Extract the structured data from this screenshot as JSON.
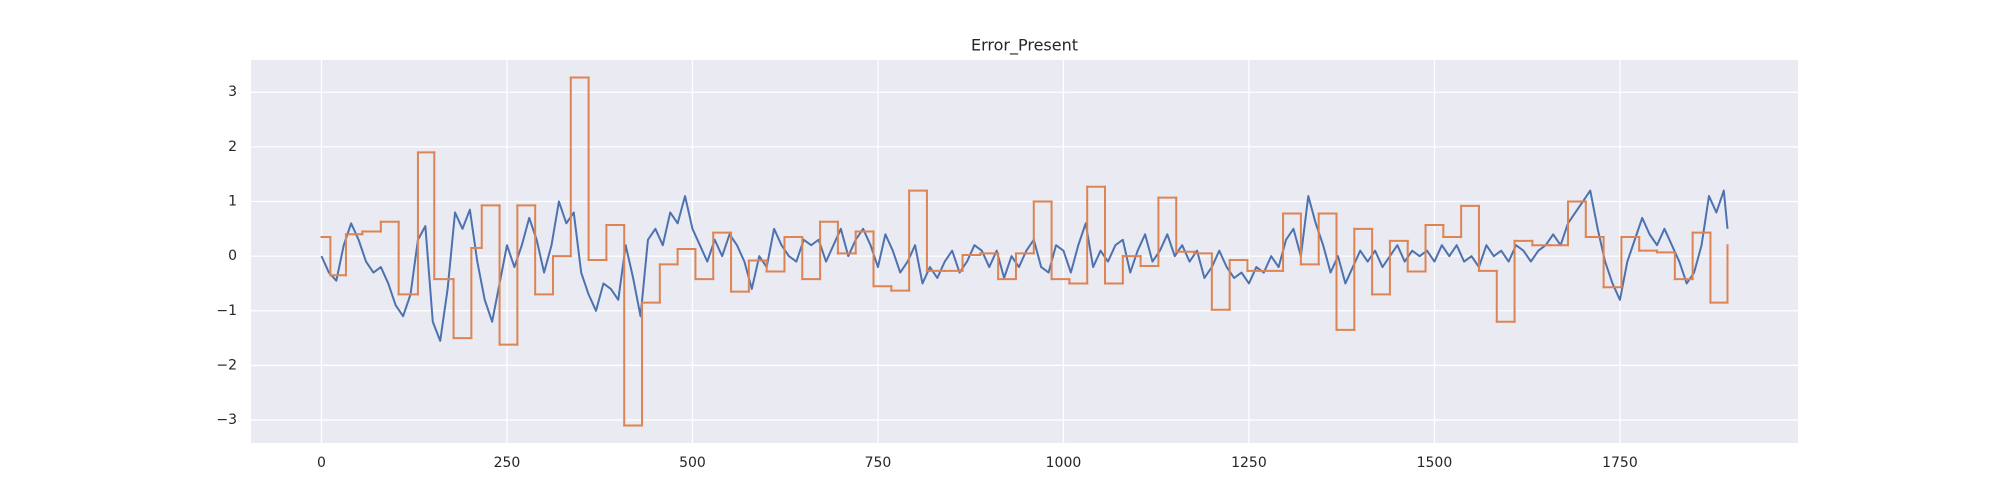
{
  "chart_data": {
    "type": "line",
    "title": "Error_Present",
    "xlim": [
      -95,
      1990
    ],
    "ylim": [
      -3.42,
      3.59
    ],
    "xticks": [
      0,
      250,
      500,
      750,
      1000,
      1250,
      1500,
      1750
    ],
    "yticks": [
      {
        "value": -3,
        "label": "−3"
      },
      {
        "value": -2,
        "label": "−2"
      },
      {
        "value": -1,
        "label": "−1"
      },
      0,
      1,
      2,
      3
    ],
    "grid": true,
    "background": "#eaeaf2",
    "series": [
      {
        "color": "#4c72b0",
        "drawstyle": "default",
        "x": [
          0,
          10,
          20,
          30,
          40,
          50,
          60,
          70,
          80,
          90,
          100,
          110,
          120,
          130,
          140,
          150,
          160,
          170,
          180,
          190,
          200,
          210,
          220,
          230,
          240,
          250,
          260,
          270,
          280,
          290,
          300,
          310,
          320,
          330,
          340,
          350,
          360,
          370,
          380,
          390,
          400,
          410,
          420,
          430,
          440,
          450,
          460,
          470,
          480,
          490,
          500,
          510,
          520,
          530,
          540,
          550,
          560,
          570,
          580,
          590,
          600,
          610,
          620,
          630,
          640,
          650,
          660,
          670,
          680,
          690,
          700,
          710,
          720,
          730,
          740,
          750,
          760,
          770,
          780,
          790,
          800,
          810,
          820,
          830,
          840,
          850,
          860,
          870,
          880,
          890,
          900,
          910,
          920,
          930,
          940,
          950,
          960,
          970,
          980,
          990,
          1000,
          1010,
          1020,
          1030,
          1040,
          1050,
          1060,
          1070,
          1080,
          1090,
          1100,
          1110,
          1120,
          1130,
          1140,
          1150,
          1160,
          1170,
          1180,
          1190,
          1200,
          1210,
          1220,
          1230,
          1240,
          1250,
          1260,
          1270,
          1280,
          1290,
          1300,
          1310,
          1320,
          1330,
          1340,
          1350,
          1360,
          1370,
          1380,
          1390,
          1400,
          1410,
          1420,
          1430,
          1440,
          1450,
          1460,
          1470,
          1480,
          1490,
          1500,
          1510,
          1520,
          1530,
          1540,
          1550,
          1560,
          1570,
          1580,
          1590,
          1600,
          1610,
          1620,
          1630,
          1640,
          1650,
          1660,
          1670,
          1680,
          1690,
          1700,
          1710,
          1720,
          1730,
          1740,
          1750,
          1760,
          1770,
          1780,
          1790,
          1800,
          1810,
          1820,
          1830,
          1840,
          1850,
          1860,
          1870,
          1880,
          1890,
          1895
        ],
        "values": [
          0,
          -0.3,
          -0.45,
          0.2,
          0.6,
          0.3,
          -0.1,
          -0.3,
          -0.2,
          -0.5,
          -0.9,
          -1.1,
          -0.7,
          0.3,
          0.55,
          -1.2,
          -1.55,
          -0.6,
          0.8,
          0.5,
          0.85,
          -0.1,
          -0.8,
          -1.2,
          -0.5,
          0.2,
          -0.2,
          0.2,
          0.7,
          0.3,
          -0.3,
          0.2,
          1.0,
          0.6,
          0.8,
          -0.3,
          -0.7,
          -1.0,
          -0.5,
          -0.6,
          -0.8,
          0.2,
          -0.4,
          -1.1,
          0.3,
          0.5,
          0.2,
          0.8,
          0.6,
          1.1,
          0.5,
          0.2,
          -0.1,
          0.3,
          0,
          0.4,
          0.2,
          -0.1,
          -0.6,
          0,
          -0.2,
          0.5,
          0.2,
          0,
          -0.1,
          0.3,
          0.2,
          0.3,
          -0.1,
          0.2,
          0.5,
          0,
          0.3,
          0.5,
          0.2,
          -0.2,
          0.4,
          0.1,
          -0.3,
          -0.1,
          0.2,
          -0.5,
          -0.2,
          -0.4,
          -0.1,
          0.1,
          -0.3,
          -0.1,
          0.2,
          0.1,
          -0.2,
          0.1,
          -0.4,
          0,
          -0.2,
          0.1,
          0.3,
          -0.2,
          -0.3,
          0.2,
          0.1,
          -0.3,
          0.2,
          0.6,
          -0.2,
          0.1,
          -0.1,
          0.2,
          0.3,
          -0.3,
          0.1,
          0.4,
          -0.1,
          0.1,
          0.4,
          0,
          0.2,
          -0.1,
          0.1,
          -0.4,
          -0.2,
          0.1,
          -0.2,
          -0.4,
          -0.3,
          -0.5,
          -0.2,
          -0.3,
          0,
          -0.2,
          0.3,
          0.5,
          0,
          1.1,
          0.6,
          0.2,
          -0.3,
          0,
          -0.5,
          -0.2,
          0.1,
          -0.1,
          0.1,
          -0.2,
          0,
          0.2,
          -0.1,
          0.1,
          0,
          0.1,
          -0.1,
          0.2,
          0,
          0.2,
          -0.1,
          0,
          -0.2,
          0.2,
          0,
          0.1,
          -0.1,
          0.2,
          0.1,
          -0.1,
          0.1,
          0.2,
          0.4,
          0.2,
          0.6,
          0.8,
          1.0,
          1.2,
          0.5,
          -0.1,
          -0.5,
          -0.8,
          -0.1,
          0.3,
          0.7,
          0.4,
          0.2,
          0.5,
          0.2,
          -0.1,
          -0.5,
          -0.3,
          0.2,
          1.1,
          0.8,
          1.2,
          0.5
        ]
      },
      {
        "color": "#dd8452",
        "drawstyle": "steps-post",
        "x": [
          0,
          12,
          33,
          55,
          80,
          104,
          130,
          152,
          178,
          202,
          216,
          240,
          264,
          288,
          312,
          336,
          360,
          384,
          408,
          432,
          456,
          480,
          504,
          528,
          552,
          576,
          600,
          624,
          648,
          672,
          696,
          720,
          744,
          768,
          792,
          816,
          840,
          864,
          888,
          912,
          936,
          960,
          984,
          1008,
          1032,
          1056,
          1080,
          1104,
          1128,
          1152,
          1176,
          1200,
          1224,
          1248,
          1272,
          1296,
          1320,
          1344,
          1368,
          1392,
          1416,
          1440,
          1464,
          1488,
          1512,
          1536,
          1560,
          1584,
          1608,
          1632,
          1656,
          1680,
          1704,
          1728,
          1752,
          1776,
          1800,
          1824,
          1848,
          1872,
          1895
        ],
        "values": [
          0.35,
          -0.35,
          0.4,
          0.45,
          0.63,
          -0.7,
          1.9,
          -0.42,
          -1.5,
          0.15,
          0.93,
          -1.62,
          0.93,
          -0.7,
          0,
          3.27,
          -0.07,
          0.57,
          -3.1,
          -0.85,
          -0.15,
          0.13,
          -0.42,
          0.43,
          -0.65,
          -0.08,
          -0.28,
          0.35,
          -0.42,
          0.63,
          0.05,
          0.45,
          -0.55,
          -0.63,
          1.2,
          -0.27,
          -0.27,
          0.02,
          0.05,
          -0.42,
          0.05,
          1.0,
          -0.42,
          -0.5,
          1.27,
          -0.5,
          0,
          -0.18,
          1.07,
          0.08,
          0.05,
          -0.98,
          -0.07,
          -0.27,
          -0.27,
          0.78,
          -0.15,
          0.78,
          -1.35,
          0.5,
          -0.7,
          0.28,
          -0.28,
          0.57,
          0.35,
          0.92,
          -0.27,
          -1.2,
          0.28,
          0.2,
          0.2,
          1.0,
          0.35,
          -0.57,
          0.35,
          0.1,
          0.07,
          -0.42,
          0.43,
          -0.85,
          0.2
        ]
      }
    ]
  }
}
